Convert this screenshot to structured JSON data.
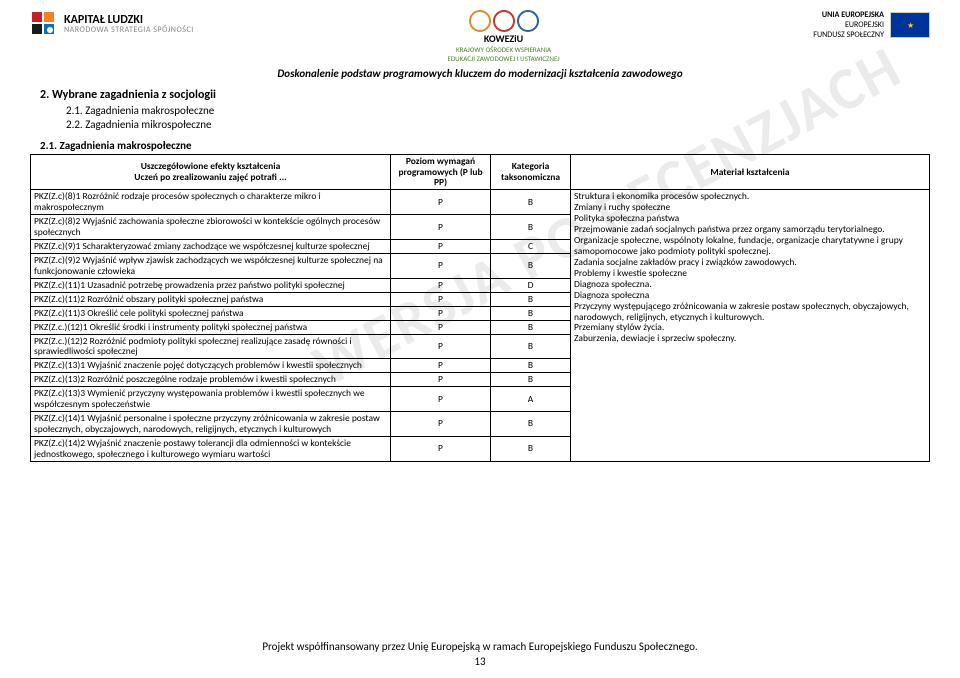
{
  "header": {
    "kl_line1": "KAPITAŁ LUDZKI",
    "kl_line2": "NARODOWA STRATEGIA SPÓJNOŚCI",
    "mid_name": "KOWEZiU",
    "mid_sub1": "KRAJOWY OŚRODEK WSPIERANIA",
    "mid_sub2": "EDUKACJI ZAWODOWEJ I USTAWICZNEJ",
    "eu_line1": "UNIA EUROPEJSKA",
    "eu_line2": "EUROPEJSKI",
    "eu_line3": "FUNDUSZ SPOŁECZNY",
    "banner": "Doskonalenie podstaw programowych kluczem do modernizacji kształcenia zawodowego"
  },
  "watermark": "WERSJA PO RECENZJACH",
  "sections": {
    "s2": "2.   Wybrane zagadnienia z socjologii",
    "s21": "2.1. Zagadnienia makrospołeczne",
    "s22": "2.2. Zagadnienia mikrospołeczne",
    "s21b": "2.1. Zagadnienia makrospołeczne"
  },
  "thead": {
    "c1a": "Uszczegółowione efekty kształcenia",
    "c1b": "Uczeń po zrealizowaniu zajęć potrafi ...",
    "c2": "Poziom wymagań programowych (P lub PP)",
    "c3": "Kategoria taksonomiczna",
    "c4": "Materiał kształcenia"
  },
  "rows": [
    {
      "e": "PKZ(Z.c)(8)1 Rozróżnić rodzaje procesów społecznych o charakterze mikro i makrospołecznym",
      "p": "P",
      "k": "B"
    },
    {
      "e": "PKZ(Z.c)(8)2 Wyjaśnić zachowania społeczne zbiorowości w kontekście ogólnych procesów społecznych",
      "p": "P",
      "k": "B"
    },
    {
      "e": "PKZ(Z.c)(9)1 Scharakteryzować zmiany zachodzące we współczesnej kulturze społecznej",
      "p": "P",
      "k": "C"
    },
    {
      "e": "PKZ(Z.c)(9)2 Wyjaśnić wpływ zjawisk zachodzących we współczesnej kulturze społecznej na funkcjonowanie człowieka",
      "p": "P",
      "k": "B"
    },
    {
      "e": "PKZ(Z.c)(11)1 Uzasadnić potrzebę prowadzenia przez państwo polityki społecznej",
      "p": "P",
      "k": "D"
    },
    {
      "e": "PKZ(Z.c)(11)2 Rozróżnić obszary polityki społecznej państwa",
      "p": "P",
      "k": "B"
    },
    {
      "e": "PKZ(Z.c)(11)3 Określić cele polityki społecznej państwa",
      "p": "P",
      "k": "B"
    },
    {
      "e": "PKZ(Z.c.)(12)1 Określić środki i instrumenty polityki społecznej państwa",
      "p": "P",
      "k": "B"
    },
    {
      "e": "PKZ(Z.c.)(12)2 Rozróżnić podmioty polityki społecznej realizujące zasadę równości i sprawiedliwości społecznej",
      "p": "P",
      "k": "B"
    },
    {
      "e": "PKZ(Z.c)(13)1 Wyjaśnić znaczenie pojęć dotyczących problemów i kwestii społecznych",
      "p": "P",
      "k": "B"
    },
    {
      "e": "PKZ(Z.c)(13)2 Rozróżnić poszczególne rodzaje problemów i kwestii społecznych",
      "p": "P",
      "k": "B"
    },
    {
      "e": "PKZ(Z.c)(13)3 Wymienić przyczyny występowania problemów i kwestii społecznych we współczesnym społeczeństwie",
      "p": "P",
      "k": "A"
    },
    {
      "e": "PKZ(Z.c)(14)1 Wyjaśnić personalne i społeczne przyczyny zróżnicowania w zakresie postaw społecznych, obyczajowych, narodowych, religijnych, etycznych i kulturowych",
      "p": "P",
      "k": "B"
    },
    {
      "e": "PKZ(Z.c)(14)2 Wyjaśnić znaczenie postawy tolerancji dla odmienności w kontekście jednostkowego, społecznego i kulturowego wymiaru wartości",
      "p": "P",
      "k": "B"
    }
  ],
  "material": "Struktura i ekonomika procesów społecznych.\nZmiany i ruchy społeczne\nPolityka społeczna państwa\nPrzejmowanie zadań socjalnych państwa przez organy samorządu terytorialnego.\nOrganizacje społeczne, wspólnoty lokalne, fundacje, organizacje charytatywne i grupy samopomocowe jako podmioty polityki społecznej.\nZadania socjalne zakładów pracy i związków zawodowych.\nProblemy i kwestie społeczne\nDiagnoza społeczna.\nDiagnoza społeczna\nPrzyczyny występującego zróżnicowania w zakresie postaw społecznych, obyczajowych, narodowych, religijnych, etycznych i kulturowych.\nPrzemiany stylów życia.\nZaburzenia, dewiacje i sprzeciw społeczny.",
  "footer": {
    "line": "Projekt współfinansowany przez Unię Europejską w ramach Europejskiego Funduszu Społecznego.",
    "page": "13"
  },
  "colors": {
    "kl_red": "#c81e2b",
    "kl_orange": "#f58220",
    "kl_black": "#1a1a1a",
    "kl_blue": "#0f6fb7",
    "mid_orange": "#e08b2c",
    "mid_red": "#c0392b",
    "mid_blue": "#2c5fa5"
  }
}
